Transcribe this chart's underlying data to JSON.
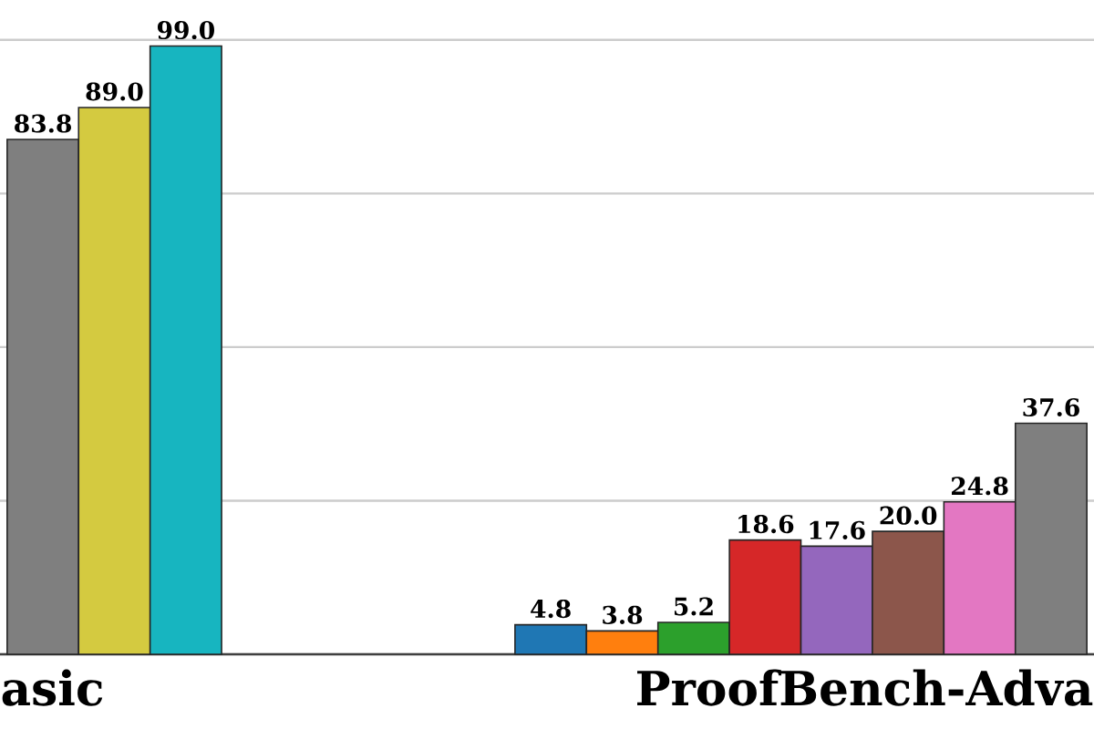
{
  "chart_data": {
    "type": "bar",
    "categories": [
      "asic",
      "ProofBench-Adva"
    ],
    "series": [
      {
        "color": "#1f77b4",
        "values": [
          null,
          4.8
        ],
        "value_labels": [
          null,
          "4.8"
        ]
      },
      {
        "color": "#ff7f0e",
        "values": [
          null,
          3.8
        ],
        "value_labels": [
          null,
          "3.8"
        ]
      },
      {
        "color": "#2ca02c",
        "values": [
          null,
          5.2
        ],
        "value_labels": [
          null,
          "5.2"
        ]
      },
      {
        "color": "#d62728",
        "values": [
          null,
          18.6
        ],
        "value_labels": [
          null,
          "18.6"
        ]
      },
      {
        "color": "#9467bd",
        "values": [
          null,
          17.6
        ],
        "value_labels": [
          null,
          "17.6"
        ]
      },
      {
        "color": "#8c564b",
        "values": [
          null,
          20.0
        ],
        "value_labels": [
          null,
          "20.0"
        ]
      },
      {
        "color": "#e377c2",
        "values": [
          null,
          24.8
        ],
        "value_labels": [
          null,
          "24.8"
        ]
      },
      {
        "color": "#7f7f7f",
        "values": [
          83.8,
          37.6
        ],
        "value_labels": [
          "83.8",
          "37.6"
        ]
      },
      {
        "color": "#d4ca40",
        "values": [
          89.0,
          null
        ],
        "value_labels": [
          "89.0",
          null
        ]
      },
      {
        "color": "#17b5c0",
        "values": [
          99.0,
          null
        ],
        "value_labels": [
          "99.0",
          null
        ]
      }
    ],
    "yticks": [
      {
        "value": 0,
        "label": null
      },
      {
        "value": 25,
        "label": null
      },
      {
        "value": 50,
        "label": null
      },
      {
        "value": 75,
        "label": null
      },
      {
        "value": 100,
        "label": null
      }
    ],
    "grid": "y",
    "tick_labels": "x"
  }
}
